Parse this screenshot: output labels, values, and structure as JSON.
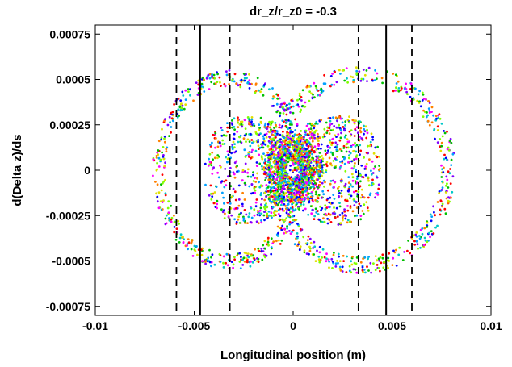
{
  "chart_data": {
    "type": "scatter",
    "title": "dr_z/r_z0 = -0.3",
    "xlabel": "Longitudinal position (m)",
    "ylabel": "d(Delta z)/ds",
    "xlim": [
      -0.01,
      0.01
    ],
    "ylim": [
      -0.0008,
      0.0008
    ],
    "x_ticks": [
      -0.01,
      -0.005,
      0,
      0.005,
      0.01
    ],
    "x_tick_labels": [
      "-0.01",
      "-0.005",
      "0",
      "0.005",
      "0.01"
    ],
    "y_ticks": [
      -0.00075,
      -0.0005,
      -0.00025,
      0,
      0.00025,
      0.0005,
      0.00075
    ],
    "y_tick_labels": [
      "-0.00075",
      "-0.0005",
      "-0.00025",
      "0",
      "0.00025",
      "0.0005",
      "0.00075"
    ],
    "grid": false,
    "vertical_lines": [
      {
        "x": -0.0047,
        "style": "solid"
      },
      {
        "x": 0.0047,
        "style": "solid"
      },
      {
        "x": -0.0059,
        "style": "dashed"
      },
      {
        "x": -0.0032,
        "style": "dashed"
      },
      {
        "x": 0.0033,
        "style": "dashed"
      },
      {
        "x": 0.006,
        "style": "dashed"
      }
    ],
    "point_colors": [
      "#ff0000",
      "#00c000",
      "#0000ff",
      "#ff00ff",
      "#00c8c8",
      "#e0e000",
      "#ff8000",
      "#8000ff",
      "#00a0ff",
      "#80ff00"
    ],
    "series": [
      {
        "shape": "outer-ring-left",
        "center": [
          -0.0032,
          0.0
        ],
        "radii": [
          0.0039,
          0.00055
        ],
        "count": 520
      },
      {
        "shape": "outer-ring-right",
        "center": [
          0.0034,
          0.0
        ],
        "radii": [
          0.0048,
          0.00057
        ],
        "count": 560
      },
      {
        "shape": "inner-scatter",
        "center": [
          0.0,
          0.0
        ],
        "radii": [
          0.0045,
          0.00048
        ],
        "count": 1300
      },
      {
        "shape": "core-rings",
        "center": [
          0.0,
          0.0
        ],
        "radii": [
          0.0015,
          0.00012
        ],
        "count": 900
      }
    ]
  }
}
